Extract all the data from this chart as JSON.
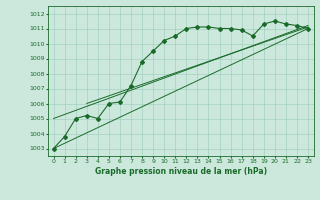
{
  "xlabel": "Graphe pression niveau de la mer (hPa)",
  "background_color": "#cce8dc",
  "grid_color": "#99ccbb",
  "line_color": "#1a6b2a",
  "text_color": "#1a6b2a",
  "ylim": [
    1002.5,
    1012.5
  ],
  "xlim": [
    -0.5,
    23.5
  ],
  "yticks": [
    1003,
    1004,
    1005,
    1006,
    1007,
    1008,
    1009,
    1010,
    1011,
    1012
  ],
  "xticks": [
    0,
    1,
    2,
    3,
    4,
    5,
    6,
    7,
    8,
    9,
    10,
    11,
    12,
    13,
    14,
    15,
    16,
    17,
    18,
    19,
    20,
    21,
    22,
    23
  ],
  "main_data_x": [
    0,
    1,
    2,
    3,
    4,
    5,
    6,
    7,
    8,
    9,
    10,
    11,
    12,
    13,
    14,
    15,
    16,
    17,
    18,
    19,
    20,
    21,
    22,
    23
  ],
  "main_data_y": [
    1003.0,
    1003.8,
    1005.0,
    1005.2,
    1005.0,
    1006.0,
    1006.1,
    1007.2,
    1008.8,
    1009.5,
    1010.2,
    1010.5,
    1011.0,
    1011.1,
    1011.1,
    1011.0,
    1011.0,
    1010.9,
    1010.5,
    1011.3,
    1011.5,
    1011.3,
    1011.2,
    1011.0
  ],
  "trend_lines": [
    {
      "x": [
        0,
        23
      ],
      "y": [
        1003.0,
        1011.0
      ]
    },
    {
      "x": [
        0,
        23
      ],
      "y": [
        1005.0,
        1011.2
      ]
    },
    {
      "x": [
        3,
        23
      ],
      "y": [
        1006.0,
        1011.1
      ]
    }
  ]
}
